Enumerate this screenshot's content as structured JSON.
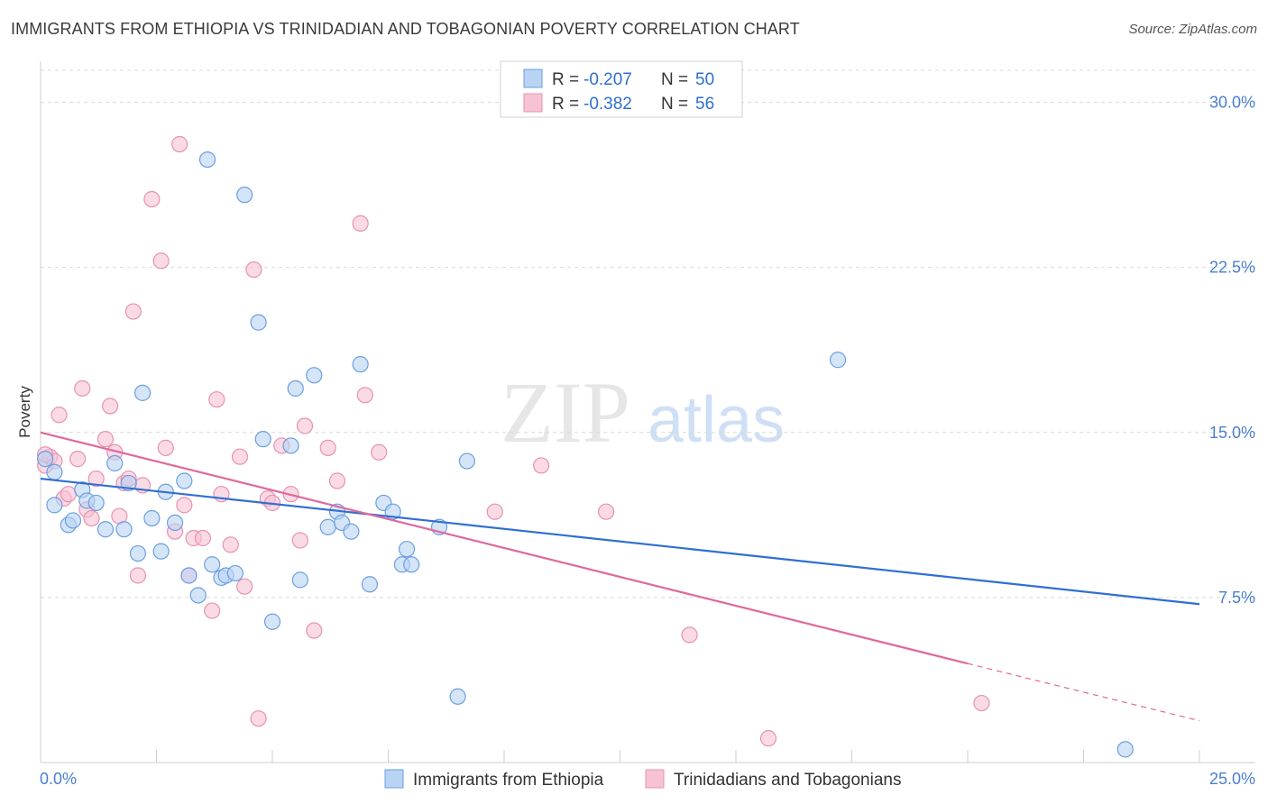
{
  "header": {
    "title": "IMMIGRANTS FROM ETHIOPIA VS TRINIDADIAN AND TOBAGONIAN POVERTY CORRELATION CHART",
    "source": "Source: ZipAtlas.com"
  },
  "watermark": {
    "zip": "ZIP",
    "atlas": "atlas"
  },
  "legend_top": {
    "rows": [
      {
        "r_label": "R =",
        "r_value": "-0.207",
        "n_label": "N =",
        "n_value": "50"
      },
      {
        "r_label": "R =",
        "r_value": "-0.382",
        "n_label": "N =",
        "n_value": "56"
      }
    ]
  },
  "colors": {
    "blue_fill": "#b9d3f3",
    "blue_stroke": "#6d9ee0",
    "blue_line": "#2f6fd1",
    "pink_fill": "#f7c2d3",
    "pink_stroke": "#e892b1",
    "pink_line": "#e0689a",
    "value_text": "#2f6fd1",
    "grid": "#d8d8d8"
  },
  "chart_data": {
    "type": "scatter",
    "title": "IMMIGRANTS FROM ETHIOPIA VS TRINIDADIAN AND TOBAGONIAN POVERTY CORRELATION CHART",
    "xlabel": "",
    "ylabel": "Poverty",
    "xlim": [
      0,
      25
    ],
    "ylim": [
      0,
      31.5
    ],
    "x_tick_labels": [
      "0.0%",
      "25.0%"
    ],
    "y_ticks": [
      7.5,
      15.0,
      22.5,
      30.0
    ],
    "y_tick_labels": [
      "7.5%",
      "15.0%",
      "22.5%",
      "30.0%"
    ],
    "grid": true,
    "legend_position": "bottom",
    "series": [
      {
        "name": "Immigrants from Ethiopia",
        "color": "#6d9ee0",
        "trend": {
          "x0": 0,
          "y0": 12.9,
          "x1": 25,
          "y1": 7.2
        },
        "points": [
          [
            0.1,
            13.8
          ],
          [
            0.3,
            13.2
          ],
          [
            0.3,
            11.7
          ],
          [
            0.6,
            10.8
          ],
          [
            0.7,
            11.0
          ],
          [
            0.9,
            12.4
          ],
          [
            1.0,
            11.9
          ],
          [
            1.2,
            11.8
          ],
          [
            1.4,
            10.6
          ],
          [
            1.6,
            13.6
          ],
          [
            1.8,
            10.6
          ],
          [
            1.9,
            12.7
          ],
          [
            2.1,
            9.5
          ],
          [
            2.2,
            16.8
          ],
          [
            2.4,
            11.1
          ],
          [
            2.6,
            9.6
          ],
          [
            2.7,
            12.3
          ],
          [
            2.9,
            10.9
          ],
          [
            3.1,
            12.8
          ],
          [
            3.2,
            8.5
          ],
          [
            3.4,
            7.6
          ],
          [
            3.6,
            27.4
          ],
          [
            3.7,
            9.0
          ],
          [
            3.9,
            8.4
          ],
          [
            4.0,
            8.5
          ],
          [
            4.2,
            8.6
          ],
          [
            4.4,
            25.8
          ],
          [
            4.7,
            20.0
          ],
          [
            4.8,
            14.7
          ],
          [
            5.0,
            6.4
          ],
          [
            5.4,
            14.4
          ],
          [
            5.5,
            17.0
          ],
          [
            5.6,
            8.3
          ],
          [
            5.9,
            17.6
          ],
          [
            6.2,
            10.7
          ],
          [
            6.4,
            11.4
          ],
          [
            6.5,
            10.9
          ],
          [
            6.7,
            10.5
          ],
          [
            6.9,
            18.1
          ],
          [
            7.1,
            8.1
          ],
          [
            7.4,
            11.8
          ],
          [
            7.6,
            11.4
          ],
          [
            7.8,
            9.0
          ],
          [
            8.0,
            9.0
          ],
          [
            7.9,
            9.7
          ],
          [
            8.6,
            10.7
          ],
          [
            9.0,
            3.0
          ],
          [
            9.2,
            13.7
          ],
          [
            17.2,
            18.3
          ],
          [
            23.4,
            0.6
          ]
        ]
      },
      {
        "name": "Trinidadians and Tobagonians",
        "color": "#e892b1",
        "trend": {
          "x0": 0,
          "y0": 15.0,
          "x1": 20,
          "y1": 4.5,
          "dash_x1": 25,
          "dash_y1": 1.9
        },
        "points": [
          [
            0.1,
            13.5
          ],
          [
            0.2,
            13.9
          ],
          [
            0.3,
            13.7
          ],
          [
            0.4,
            15.8
          ],
          [
            0.5,
            12.0
          ],
          [
            0.6,
            12.2
          ],
          [
            0.8,
            13.8
          ],
          [
            0.9,
            17.0
          ],
          [
            1.0,
            11.5
          ],
          [
            1.1,
            11.1
          ],
          [
            1.2,
            12.9
          ],
          [
            1.4,
            14.7
          ],
          [
            1.5,
            16.2
          ],
          [
            1.6,
            14.1
          ],
          [
            1.7,
            11.2
          ],
          [
            1.8,
            12.7
          ],
          [
            1.9,
            12.9
          ],
          [
            2.0,
            20.5
          ],
          [
            2.1,
            8.5
          ],
          [
            2.2,
            12.6
          ],
          [
            2.4,
            25.6
          ],
          [
            2.6,
            22.8
          ],
          [
            2.7,
            14.3
          ],
          [
            2.9,
            10.5
          ],
          [
            3.0,
            28.1
          ],
          [
            3.1,
            11.7
          ],
          [
            3.2,
            8.5
          ],
          [
            3.3,
            10.2
          ],
          [
            3.5,
            10.2
          ],
          [
            3.7,
            6.9
          ],
          [
            3.8,
            16.5
          ],
          [
            3.9,
            12.2
          ],
          [
            4.1,
            9.9
          ],
          [
            4.3,
            13.9
          ],
          [
            4.4,
            8.0
          ],
          [
            4.6,
            22.4
          ],
          [
            4.7,
            2.0
          ],
          [
            4.9,
            12.0
          ],
          [
            5.0,
            11.8
          ],
          [
            5.2,
            14.4
          ],
          [
            5.4,
            12.2
          ],
          [
            5.6,
            10.1
          ],
          [
            5.7,
            15.3
          ],
          [
            5.9,
            6.0
          ],
          [
            6.2,
            14.3
          ],
          [
            6.4,
            12.8
          ],
          [
            6.9,
            24.5
          ],
          [
            7.0,
            16.7
          ],
          [
            7.3,
            14.1
          ],
          [
            9.8,
            11.4
          ],
          [
            10.8,
            13.5
          ],
          [
            12.2,
            11.4
          ],
          [
            14.0,
            5.8
          ],
          [
            15.7,
            1.1
          ],
          [
            20.3,
            2.7
          ],
          [
            0.1,
            14.0
          ]
        ]
      }
    ]
  },
  "legend_bottom": {
    "items": [
      {
        "label": "Immigrants from Ethiopia"
      },
      {
        "label": "Trinidadians and Tobagonians"
      }
    ]
  }
}
